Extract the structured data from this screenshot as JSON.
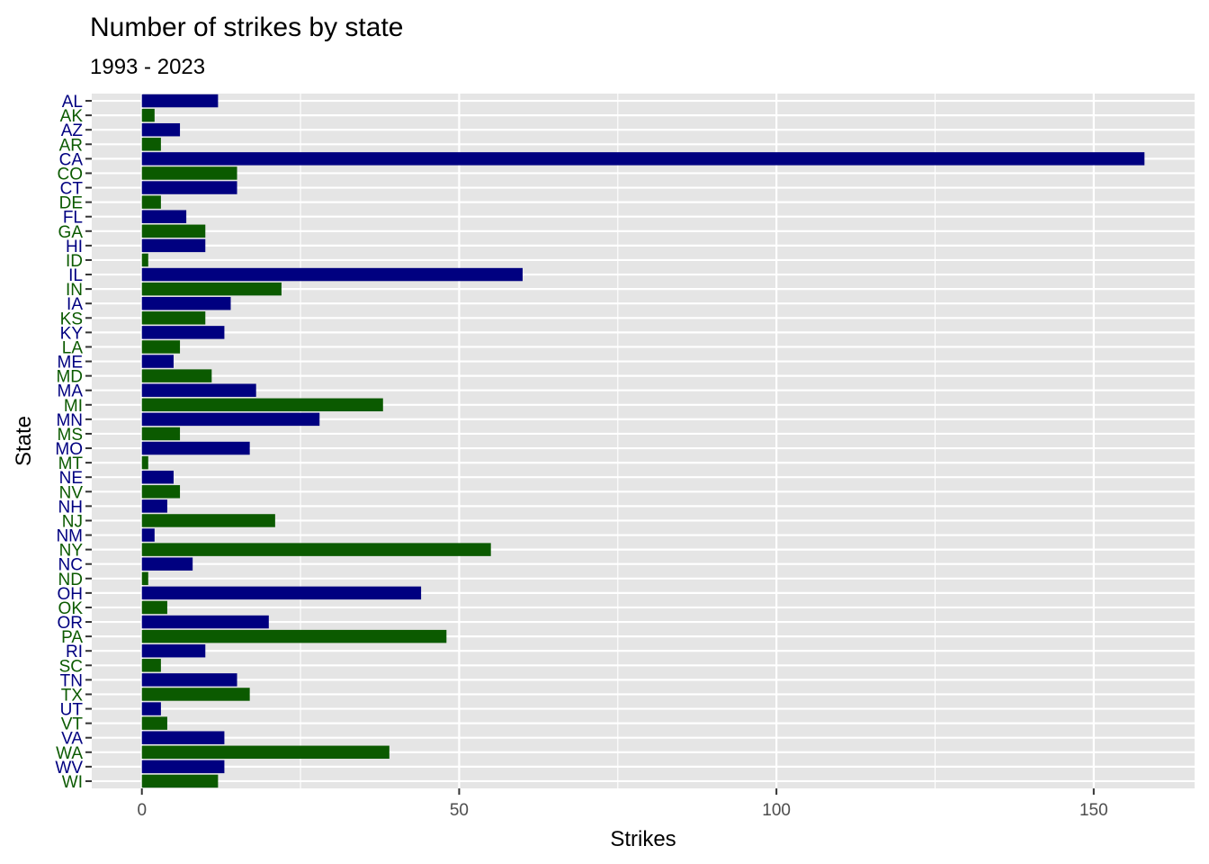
{
  "chart_data": {
    "type": "bar",
    "orientation": "horizontal",
    "title": "Number of strikes by state",
    "subtitle": "1993 - 2023",
    "xlabel": "Strikes",
    "ylabel": "State",
    "xlim": [
      -7.9,
      165.9
    ],
    "xticks": [
      0,
      50,
      100,
      150
    ],
    "x_minor_ticks": [
      25,
      75,
      125
    ],
    "grid": true,
    "legend": "none",
    "colors": [
      "#000080",
      "#0b5a00"
    ],
    "panel_background": "#e5e5e5",
    "categories": [
      "AL",
      "AK",
      "AZ",
      "AR",
      "CA",
      "CO",
      "CT",
      "DE",
      "FL",
      "GA",
      "HI",
      "ID",
      "IL",
      "IN",
      "IA",
      "KS",
      "KY",
      "LA",
      "ME",
      "MD",
      "MA",
      "MI",
      "MN",
      "MS",
      "MO",
      "MT",
      "NE",
      "NV",
      "NH",
      "NJ",
      "NM",
      "NY",
      "NC",
      "ND",
      "OH",
      "OK",
      "OR",
      "PA",
      "RI",
      "SC",
      "TN",
      "TX",
      "UT",
      "VT",
      "VA",
      "WA",
      "WV",
      "WI"
    ],
    "values": [
      12,
      2,
      6,
      3,
      158,
      15,
      15,
      3,
      7,
      10,
      10,
      1,
      60,
      22,
      14,
      10,
      13,
      6,
      5,
      11,
      18,
      38,
      28,
      6,
      17,
      1,
      5,
      6,
      4,
      21,
      2,
      55,
      8,
      1,
      44,
      4,
      20,
      48,
      10,
      3,
      15,
      17,
      3,
      4,
      13,
      39,
      13,
      12
    ]
  }
}
